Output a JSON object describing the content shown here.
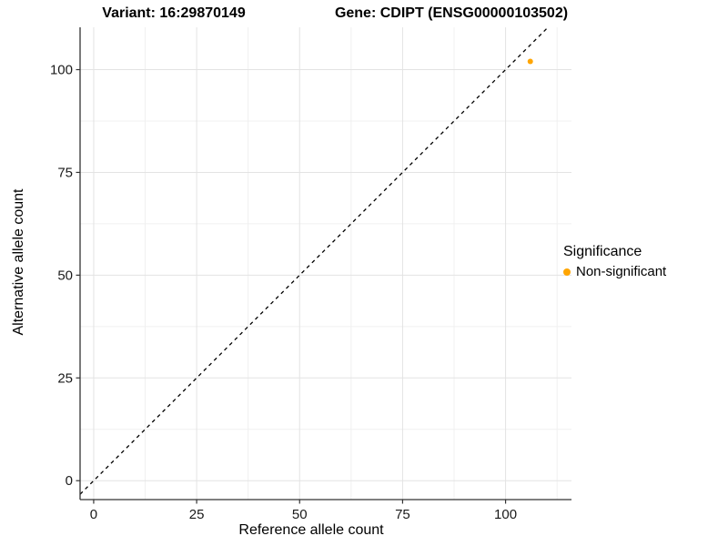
{
  "titles": {
    "left": "Variant: 16:29870149",
    "right": "Gene: CDIPT (ENSG00000103502)"
  },
  "chart_data": {
    "type": "scatter",
    "title": "Variant: 16:29870149   Gene: CDIPT (ENSG00000103502)",
    "xlabel": "Reference allele count",
    "ylabel": "Alternative allele count",
    "xlim": [
      -3.3,
      116
    ],
    "ylim": [
      -4.6,
      110.3
    ],
    "xticks": [
      0,
      25,
      50,
      75,
      100
    ],
    "yticks": [
      0,
      25,
      50,
      75,
      100
    ],
    "minor_grid_step": 12.5,
    "grid": true,
    "reference_line": {
      "slope": 1,
      "intercept": 0,
      "style": "dashed",
      "color": "#000000"
    },
    "series": [
      {
        "name": "Non-significant",
        "color": "#FFA500",
        "points": [
          {
            "x": 106,
            "y": 102
          }
        ]
      }
    ],
    "legend": {
      "title": "Significance",
      "position": "right",
      "items": [
        {
          "label": "Non-significant",
          "color": "#FFA500"
        }
      ]
    }
  },
  "theme": {
    "accent": "#FFA500",
    "grid_major": "#E3E3E3",
    "grid_minor": "#F0F0F0",
    "axis_line": "#333333",
    "tick_text": "#1A1A1A",
    "background": "#FFFFFF"
  }
}
